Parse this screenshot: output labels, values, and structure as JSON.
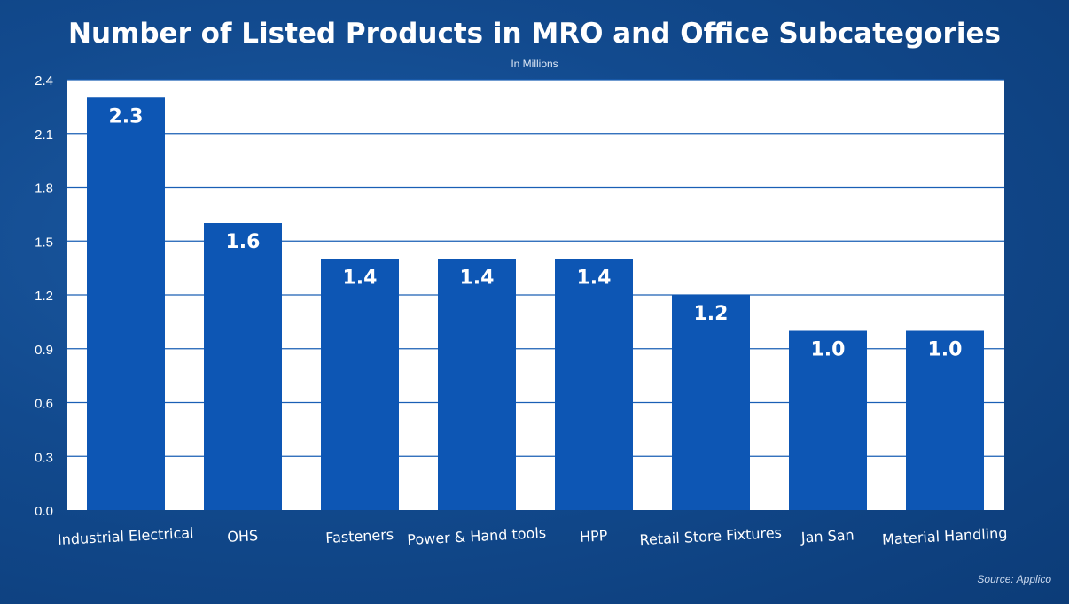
{
  "chart_data": {
    "type": "bar",
    "title": "Number of Listed Products in MRO and Office Subcategories",
    "subtitle": "In Millions",
    "source": "Source: Applico",
    "categories": [
      "Industrial Electrical",
      "OHS",
      "Fasteners",
      "Power & Hand tools",
      "HPP",
      "Retail Store Fixtures",
      "Jan San",
      "Material Handling"
    ],
    "values": [
      2.3,
      1.6,
      1.4,
      1.4,
      1.4,
      1.2,
      1.0,
      1.0
    ],
    "value_labels": [
      "2.3",
      "1.6",
      "1.4",
      "1.4",
      "1.4",
      "1.2",
      "1.0",
      "1.0"
    ],
    "yticks": [
      "0.0",
      "0.3",
      "0.6",
      "0.9",
      "1.2",
      "1.5",
      "1.8",
      "2.1",
      "2.4"
    ],
    "ylim": [
      0,
      2.4
    ],
    "grid": true,
    "colors": {
      "bar": "#0d56b4",
      "plot_background": "#ffffff",
      "gridline": "#1a5fb5",
      "text": "#ffffff"
    }
  }
}
